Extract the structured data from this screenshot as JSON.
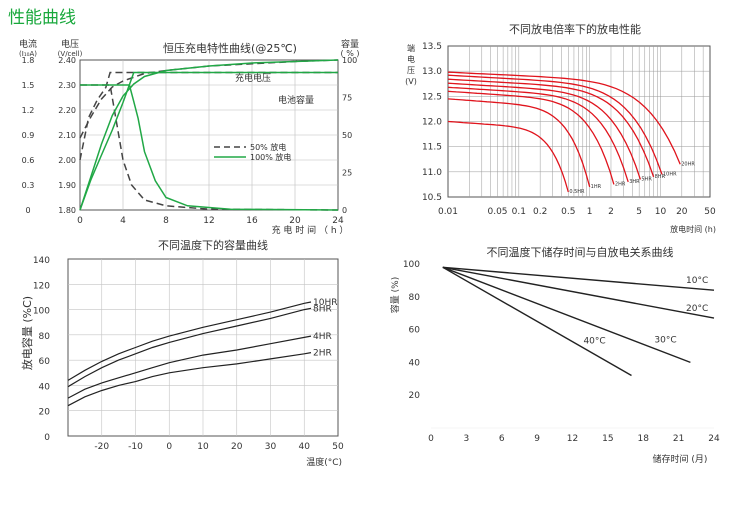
{
  "page": {
    "title": "性能曲线"
  },
  "chart_data": [
    {
      "id": "charge",
      "type": "line",
      "title": "恒压充电特性曲线(@25℃)",
      "xlabel": "充 电 时 间 （ h ）",
      "xlim": [
        0,
        24
      ],
      "xticks": [
        "0",
        "4",
        "8",
        "12",
        "16",
        "20",
        "24"
      ],
      "left_axis1": {
        "label": "电流",
        "sub": "(I₁₀A)",
        "ticks": [
          "1.8",
          "1.5",
          "1.2",
          "0.9",
          "0.6",
          "0.3",
          "0"
        ]
      },
      "left_axis2": {
        "label": "电压",
        "sub": "(V/cell)",
        "ylim": [
          1.8,
          2.4
        ],
        "ticks": [
          "2.40",
          "2.30",
          "2.20",
          "2.10",
          "2.00",
          "1.90",
          "1.80"
        ]
      },
      "right_axis": {
        "label": "容量",
        "sub": "( % )",
        "ylim": [
          0,
          100
        ],
        "ticks": [
          "100",
          "75",
          "50",
          "25",
          "0"
        ]
      },
      "annotations": [
        "充电电压",
        "电池容量"
      ],
      "legend": [
        {
          "label": "50% 放电",
          "style": "dashed",
          "color": "#444444"
        },
        {
          "label": "100% 放电",
          "style": "solid",
          "color": "#21a846"
        }
      ],
      "series": [
        {
          "name": "50% 放电 电压",
          "style": "dashed",
          "color": "#444444",
          "x": [
            0,
            0.8,
            1.6,
            2.4,
            2.8,
            24
          ],
          "y": [
            2.0,
            2.17,
            2.24,
            2.29,
            2.35,
            2.35
          ]
        },
        {
          "name": "50% 放电 电流",
          "style": "dashed",
          "color": "#444444",
          "x": [
            0,
            2.8,
            3.2,
            4,
            4.8,
            6,
            8,
            12,
            24
          ],
          "y_current": [
            1.5,
            1.5,
            1.2,
            0.6,
            0.3,
            0.12,
            0.05,
            0.01,
            0.0
          ]
        },
        {
          "name": "50% 放电 容量",
          "style": "dashed",
          "color": "#444444",
          "x": [
            0,
            1,
            2,
            3,
            4,
            6,
            8,
            12,
            16,
            20,
            24
          ],
          "y": [
            48,
            62,
            74,
            82,
            86,
            91,
            93,
            96,
            97.5,
            99,
            100
          ]
        },
        {
          "name": "100% 放电 电压",
          "style": "solid",
          "color": "#21a846",
          "x": [
            0,
            1,
            2,
            3,
            4,
            5,
            24
          ],
          "y": [
            1.8,
            1.92,
            2.02,
            2.12,
            2.23,
            2.35,
            2.35
          ]
        },
        {
          "name": "100% 放电 电流",
          "style": "solid",
          "color": "#21a846",
          "x": [
            0,
            4.6,
            5,
            5.4,
            6,
            7,
            8,
            10,
            14,
            24
          ],
          "y_current": [
            1.5,
            1.5,
            1.3,
            1.1,
            0.7,
            0.35,
            0.15,
            0.05,
            0.01,
            0.0
          ]
        },
        {
          "name": "100% 放电 容量",
          "style": "solid",
          "color": "#21a846",
          "x": [
            0,
            1,
            2,
            3,
            4,
            5,
            6,
            8,
            12,
            16,
            20,
            24
          ],
          "y": [
            0,
            22,
            44,
            63,
            76,
            84,
            89,
            93,
            96,
            98,
            99,
            100
          ]
        }
      ]
    },
    {
      "id": "discharge",
      "type": "line",
      "title": "不同放电倍率下的放电性能",
      "ylabel": [
        "端",
        "电",
        "压",
        "(V)"
      ],
      "xlabel": "放电时间 (h)",
      "xscale": "log",
      "xlim": [
        0.01,
        50
      ],
      "ylim": [
        10.5,
        13.5
      ],
      "xticks": [
        0.01,
        0.05,
        0.1,
        0.2,
        0.5,
        1,
        2,
        5,
        10,
        20,
        50
      ],
      "xticklabels": [
        "0.01",
        "0.05",
        "0.1",
        "0.2",
        "0.5",
        "1",
        "2",
        "5",
        "10",
        "20",
        "50"
      ],
      "yticks": [
        "13.5",
        "13.0",
        "12.5",
        "12.0",
        "11.5",
        "11.0",
        "10.5"
      ],
      "color": "#e0141d",
      "series": [
        {
          "name": "0.5HR",
          "start": 12.0,
          "end_t": 0.5,
          "end_v": 10.6
        },
        {
          "name": "1HR",
          "start": 12.45,
          "end_t": 1.0,
          "end_v": 10.7
        },
        {
          "name": "2HR",
          "start": 12.6,
          "end_t": 2.2,
          "end_v": 10.75
        },
        {
          "name": "3HR",
          "start": 12.68,
          "end_t": 3.5,
          "end_v": 10.8
        },
        {
          "name": "5HR",
          "start": 12.76,
          "end_t": 5.2,
          "end_v": 10.85
        },
        {
          "name": "8HR",
          "start": 12.84,
          "end_t": 8.0,
          "end_v": 10.9
        },
        {
          "name": "10HR",
          "start": 12.92,
          "end_t": 10.5,
          "end_v": 10.95
        },
        {
          "name": "20HR",
          "start": 12.98,
          "end_t": 19.0,
          "end_v": 11.15
        }
      ]
    },
    {
      "id": "temperature",
      "type": "line",
      "title": "不同温度下的容量曲线",
      "ylabel": "放电容量 (%C)",
      "xlabel": "温度(°C)",
      "xlim": [
        -30,
        50
      ],
      "ylim": [
        0,
        140
      ],
      "xticks": [
        -20,
        -10,
        0,
        10,
        20,
        30,
        40,
        50
      ],
      "yticks": [
        0,
        20,
        40,
        60,
        80,
        100,
        120,
        140
      ],
      "color": "#222222",
      "series": [
        {
          "name": "10HR",
          "x": [
            -30,
            -25,
            -20,
            -15,
            -10,
            -5,
            0,
            10,
            20,
            30,
            40,
            42
          ],
          "y": [
            44,
            52,
            59,
            65,
            70,
            75,
            79,
            86,
            92,
            98,
            105,
            106
          ]
        },
        {
          "name": "8HR",
          "x": [
            -30,
            -25,
            -20,
            -15,
            -10,
            -5,
            0,
            10,
            20,
            30,
            40,
            42
          ],
          "y": [
            39,
            47,
            54,
            60,
            65,
            70,
            74,
            81,
            87,
            93,
            100,
            101
          ]
        },
        {
          "name": "4HR",
          "x": [
            -30,
            -25,
            -20,
            -15,
            -10,
            -5,
            0,
            10,
            20,
            30,
            40,
            42
          ],
          "y": [
            30,
            37,
            42,
            46,
            50,
            54,
            58,
            64,
            68,
            73,
            78,
            79
          ]
        },
        {
          "name": "2HR",
          "x": [
            -30,
            -25,
            -20,
            -15,
            -10,
            -5,
            0,
            10,
            20,
            30,
            40,
            42
          ],
          "y": [
            24,
            31,
            36,
            40,
            43,
            47,
            50,
            54,
            57,
            61,
            65,
            66
          ]
        }
      ]
    },
    {
      "id": "storage",
      "type": "line",
      "title": "不同温度下储存时间与自放电关系曲线",
      "ylabel": "容量 (%)",
      "xlabel": "储存时间 (月)",
      "xlim": [
        0,
        24
      ],
      "ylim": [
        0,
        100
      ],
      "xticks": [
        0,
        3,
        6,
        9,
        12,
        15,
        18,
        21,
        24
      ],
      "yticks": [
        20,
        40,
        60,
        80,
        100
      ],
      "color": "#222222",
      "series": [
        {
          "name": "10°C",
          "x": [
            1,
            24
          ],
          "y": [
            98,
            84
          ]
        },
        {
          "name": "20°C",
          "x": [
            1,
            24
          ],
          "y": [
            98,
            67
          ]
        },
        {
          "name": "30°C",
          "x": [
            1,
            22
          ],
          "y": [
            98,
            40
          ]
        },
        {
          "name": "40°C",
          "x": [
            1,
            17
          ],
          "y": [
            98,
            32
          ]
        }
      ]
    }
  ]
}
